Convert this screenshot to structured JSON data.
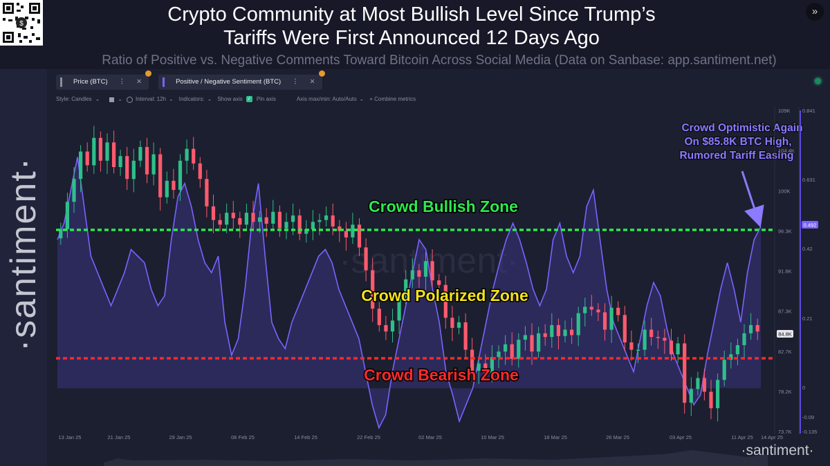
{
  "header": {
    "title_line1": "Crypto Community at Most Bullish Level Since Trump’s",
    "title_line2": "Tariffs Were First Announced 12 Days Ago",
    "subtitle": "Ratio of Positive vs. Negative Comments Toward Bitcoin Across Social Media (Data on Sanbase: app.santiment.net)",
    "close_label": "»"
  },
  "brand": {
    "side_text": "·santiment·",
    "watermark": "·santiment·",
    "footer_logo": "·santiment·"
  },
  "tabs": [
    {
      "label": "Price (BTC)",
      "more": "⋮",
      "close": "✕"
    },
    {
      "label": "Positive / Negative Sentiment (BTC)",
      "more": "⋮",
      "close": "✕"
    }
  ],
  "toolbar": {
    "style": "Style: Candles",
    "style_arrow": "⌄",
    "color_arrow": "⌄",
    "interval": "Interval: 12h",
    "interval_arrow": "⌄",
    "indicators": "Indicators:",
    "indicators_arrow": "⌄",
    "show_axis": "Show axis",
    "pin_axis": "Pin axis",
    "axis_minmax": "Axis max/min: Auto/Auto",
    "axis_arrow": "⌄",
    "combine": "+ Combine metrics"
  },
  "colors": {
    "background": "#171929",
    "panel": "#1c1f2f",
    "sentiment_line": "#7a63ff",
    "sentiment_fill": "#3a3380",
    "candle_up": "#2fbf8a",
    "candle_down": "#ff5a6e",
    "bullish_line": "#2ee84f",
    "bearish_line": "#ff2a2a",
    "bullish_text": "#2ee84f",
    "polarized_text": "#f2e21e",
    "bearish_text": "#ff2a2a",
    "annotation_text": "#8c7aff"
  },
  "chart_data": {
    "type": "line",
    "title": "Crypto Community at Most Bullish Level Since Trump’s Tariffs Were First Announced 12 Days Ago",
    "subtitle": "Ratio of Positive vs. Negative Comments Toward Bitcoin Across Social Media (Data on Sanbase: app.santiment.net)",
    "x_ticks": [
      "13 Jan 25",
      "21 Jan 25",
      "29 Jan 25",
      "06 Feb 25",
      "14 Feb 25",
      "22 Feb 25",
      "02 Mar 25",
      "10 Mar 25",
      "18 Mar 25",
      "26 Mar 25",
      "03 Apr 25",
      "11 Apr 25",
      "14 Apr 25"
    ],
    "x_range": [
      "2025-01-13",
      "2025-04-14"
    ],
    "price_axis": {
      "ticks": [
        "109K",
        "104.4K",
        "100K",
        "96.3K",
        "91.8K",
        "87.3K",
        "82.7K",
        "78.2K",
        "73.7K"
      ],
      "ylim": [
        73700,
        109000
      ]
    },
    "sentiment_axis": {
      "ticks": [
        "0.841",
        "0.631",
        "0.42",
        "0.21",
        "0",
        "-0.09",
        "-0.135"
      ],
      "ylim": [
        -0.135,
        0.841
      ]
    },
    "current_price_label": "84.8K",
    "current_sentiment_label": "0.492",
    "price_series": {
      "name": "Price (BTC)",
      "close": [
        96000,
        99000,
        101500,
        104500,
        103000,
        106000,
        103500,
        105500,
        102800,
        104000,
        101500,
        103500,
        105000,
        102000,
        104200,
        99500,
        101300,
        100300,
        103500,
        104800,
        103200,
        101500,
        98500,
        97000,
        96500,
        97800,
        97200,
        96500,
        97800,
        96800,
        97300,
        96600,
        97900,
        96100,
        96800,
        97500,
        95500,
        96000,
        96800,
        97000,
        97500,
        96300,
        95800,
        95100,
        96500,
        94000,
        91500,
        87300,
        85500,
        84800,
        86000,
        88500,
        90500,
        91500,
        90800,
        92500,
        90400,
        89900,
        86300,
        85200,
        85800,
        82800,
        80500,
        81300,
        80200,
        82000,
        82600,
        83400,
        81800,
        83900,
        84400,
        82600,
        84600,
        84200,
        85500,
        84300,
        85000,
        84400,
        86800,
        87500,
        87200,
        86900,
        85000,
        87400,
        86600,
        83600,
        82800,
        82800,
        85000,
        84200,
        84100,
        83800,
        82300,
        83500,
        77000,
        78500,
        79700,
        78200,
        76400,
        79500,
        81700,
        82300,
        83300,
        84600,
        85500,
        84800
      ],
      "ylabel": ""
    },
    "sentiment_series": {
      "name": "Positive / Negative Sentiment (BTC)",
      "values": [
        0.45,
        0.5,
        0.6,
        0.7,
        0.55,
        0.4,
        0.35,
        0.3,
        0.25,
        0.3,
        0.35,
        0.42,
        0.4,
        0.38,
        0.3,
        0.25,
        0.28,
        0.45,
        0.58,
        0.62,
        0.55,
        0.45,
        0.38,
        0.35,
        0.4,
        0.2,
        0.1,
        0.15,
        0.3,
        0.5,
        0.62,
        0.4,
        0.2,
        0.15,
        0.12,
        0.2,
        0.25,
        0.3,
        0.35,
        0.4,
        0.42,
        0.38,
        0.3,
        0.25,
        0.2,
        0.15,
        0.05,
        -0.05,
        -0.12,
        -0.08,
        0.05,
        0.15,
        0.25,
        0.35,
        0.45,
        0.42,
        0.3,
        0.2,
        0.05,
        -0.02,
        -0.1,
        -0.05,
        0.0,
        0.1,
        0.2,
        0.3,
        0.38,
        0.45,
        0.5,
        0.45,
        0.38,
        0.3,
        0.25,
        0.3,
        0.45,
        0.5,
        0.4,
        0.35,
        0.4,
        0.55,
        0.6,
        0.45,
        0.3,
        0.2,
        0.15,
        0.1,
        0.05,
        0.15,
        0.25,
        0.32,
        0.28,
        0.18,
        0.1,
        0.05,
        0.0,
        -0.05,
        -0.02,
        0.1,
        0.2,
        0.3,
        0.38,
        0.3,
        0.2,
        0.35,
        0.45,
        0.49
      ]
    },
    "zones": [
      {
        "label": "Crowd Bullish Zone",
        "sentiment_level": 0.47
      },
      {
        "label": "Crowd Polarized Zone"
      },
      {
        "label": "Crowd Bearish Zone",
        "sentiment_level": 0.06
      }
    ],
    "annotation": {
      "lines": [
        "Crowd Optimistic Again",
        "On $85.8K BTC High,",
        "Rumored Tariff Easing"
      ]
    },
    "grid": false,
    "legend": "top-left tabs"
  }
}
